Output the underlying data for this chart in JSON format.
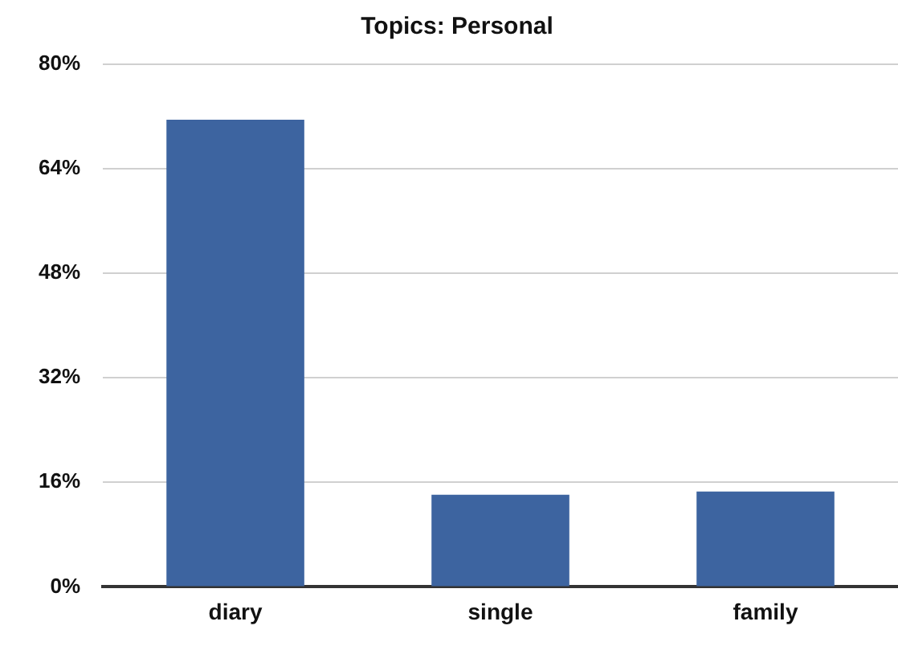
{
  "chart_data": {
    "type": "bar",
    "title": "Topics: Personal",
    "categories": [
      "diary",
      "single",
      "family"
    ],
    "values": [
      71.5,
      14.1,
      14.6
    ],
    "color": "#3d64a0",
    "ylim": [
      0,
      80
    ],
    "yticks": [
      {
        "value": 0,
        "label": "0%"
      },
      {
        "value": 16,
        "label": "16%"
      },
      {
        "value": 32,
        "label": "32%"
      },
      {
        "value": 48,
        "label": "48%"
      },
      {
        "value": 64,
        "label": "64%"
      },
      {
        "value": 80,
        "label": "80%"
      }
    ],
    "grid": "y",
    "legend": false
  }
}
